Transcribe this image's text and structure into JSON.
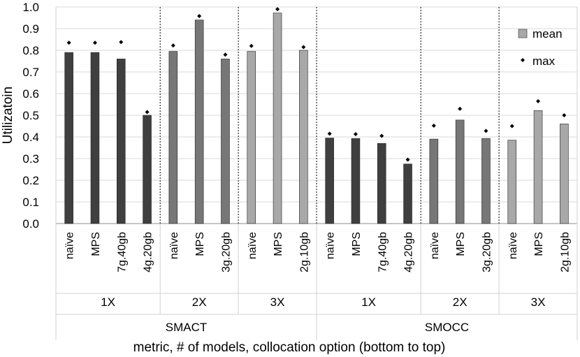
{
  "chart_data": {
    "type": "bar",
    "title": "",
    "ylabel": "Utilizatoin",
    "xlabel": "metric, # of models, collocation option (bottom to top)",
    "ylim": [
      0,
      1.0
    ],
    "yticks": [
      "0.0",
      "0.1",
      "0.2",
      "0.3",
      "0.4",
      "0.5",
      "0.6",
      "0.7",
      "0.8",
      "0.9",
      "1.0"
    ],
    "grid": true,
    "legend": {
      "position": "top-right",
      "items": [
        {
          "name": "mean",
          "marker": "bar"
        },
        {
          "name": "max",
          "marker": "diamond"
        }
      ]
    },
    "metrics": [
      {
        "label": "SMACT",
        "groups": [
          {
            "label": "1X",
            "shade": "#3f3f3f",
            "bars": [
              {
                "category": "naïve",
                "mean": 0.79,
                "max": 0.835
              },
              {
                "category": "MPS",
                "mean": 0.79,
                "max": 0.835
              },
              {
                "category": "7g.40gb",
                "mean": 0.76,
                "max": 0.838
              },
              {
                "category": "4g.20gb",
                "mean": 0.5,
                "max": 0.515
              }
            ]
          },
          {
            "label": "2X",
            "shade": "#777777",
            "bars": [
              {
                "category": "naïve",
                "mean": 0.795,
                "max": 0.822
              },
              {
                "category": "MPS",
                "mean": 0.94,
                "max": 0.958
              },
              {
                "category": "3g.20gb",
                "mean": 0.76,
                "max": 0.78
              }
            ]
          },
          {
            "label": "3X",
            "shade": "#a8a8a8",
            "bars": [
              {
                "category": "naïve",
                "mean": 0.795,
                "max": 0.82
              },
              {
                "category": "MPS",
                "mean": 0.972,
                "max": 0.99
              },
              {
                "category": "2g.10gb",
                "mean": 0.8,
                "max": 0.815
              }
            ]
          }
        ]
      },
      {
        "label": "SMOCC",
        "groups": [
          {
            "label": "1X",
            "shade": "#3f3f3f",
            "bars": [
              {
                "category": "naïve",
                "mean": 0.395,
                "max": 0.415
              },
              {
                "category": "MPS",
                "mean": 0.393,
                "max": 0.413
              },
              {
                "category": "7g.40gb",
                "mean": 0.37,
                "max": 0.405
              },
              {
                "category": "4g.20gb",
                "mean": 0.275,
                "max": 0.295
              }
            ]
          },
          {
            "label": "2X",
            "shade": "#777777",
            "bars": [
              {
                "category": "naïve",
                "mean": 0.39,
                "max": 0.452
              },
              {
                "category": "MPS",
                "mean": 0.478,
                "max": 0.53
              },
              {
                "category": "3g.20gb",
                "mean": 0.393,
                "max": 0.428
              }
            ]
          },
          {
            "label": "3X",
            "shade": "#a8a8a8",
            "bars": [
              {
                "category": "naïve",
                "mean": 0.385,
                "max": 0.45
              },
              {
                "category": "MPS",
                "mean": 0.522,
                "max": 0.565
              },
              {
                "category": "2g.10gb",
                "mean": 0.46,
                "max": 0.5
              }
            ]
          }
        ]
      }
    ]
  }
}
